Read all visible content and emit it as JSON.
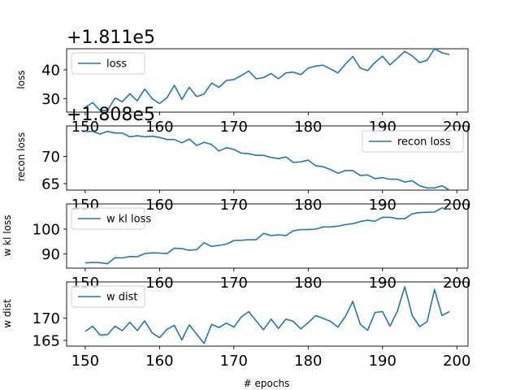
{
  "chart_data": [
    {
      "type": "line",
      "title": "",
      "xlabel": "",
      "ylabel": "loss",
      "offset_text": "+1.811e5",
      "legend": "top-left",
      "grid": false,
      "xlim": [
        147.5,
        201.5
      ],
      "ylim": [
        25.3,
        47.3
      ],
      "xticks": [
        150,
        160,
        170,
        180,
        190,
        200
      ],
      "yticks": [
        30,
        40
      ],
      "x": [
        150,
        151,
        152,
        153,
        154,
        155,
        156,
        157,
        158,
        159,
        160,
        161,
        162,
        163,
        164,
        165,
        166,
        167,
        168,
        169,
        170,
        171,
        172,
        173,
        174,
        175,
        176,
        177,
        178,
        179,
        180,
        181,
        182,
        183,
        184,
        185,
        186,
        187,
        188,
        189,
        190,
        191,
        192,
        193,
        194,
        195,
        196,
        197,
        198,
        199
      ],
      "series": [
        {
          "name": "loss",
          "color": "#1f77b4",
          "values": [
            27.0,
            28.6,
            25.9,
            25.9,
            30.2,
            28.9,
            31.7,
            29.2,
            33.3,
            30.0,
            28.3,
            30.3,
            34.6,
            29.7,
            33.9,
            30.7,
            31.6,
            35.4,
            33.9,
            36.3,
            36.6,
            38.0,
            39.6,
            36.9,
            37.3,
            38.7,
            36.9,
            38.9,
            39.2,
            38.3,
            40.6,
            41.3,
            41.6,
            40.3,
            38.9,
            42.0,
            44.6,
            40.6,
            39.7,
            42.6,
            44.7,
            41.7,
            44.0,
            46.4,
            44.8,
            42.5,
            43.3,
            47.3,
            45.9,
            45.3
          ]
        }
      ]
    },
    {
      "type": "line",
      "title": "",
      "xlabel": "",
      "ylabel": "recon loss",
      "offset_text": "+1.808e5",
      "legend": "top-right",
      "grid": false,
      "xlim": [
        147.5,
        201.5
      ],
      "ylim": [
        63.8,
        75.6
      ],
      "xticks": [
        150,
        160,
        170,
        180,
        190,
        200
      ],
      "yticks": [
        65,
        70
      ],
      "x": [
        150,
        151,
        152,
        153,
        154,
        155,
        156,
        157,
        158,
        159,
        160,
        161,
        162,
        163,
        164,
        165,
        166,
        167,
        168,
        169,
        170,
        171,
        172,
        173,
        174,
        175,
        176,
        177,
        178,
        179,
        180,
        181,
        182,
        183,
        184,
        185,
        186,
        187,
        188,
        189,
        190,
        191,
        192,
        193,
        194,
        195,
        196,
        197,
        198,
        199
      ],
      "series": [
        {
          "name": "recon loss",
          "color": "#1f77b4",
          "values": [
            74.6,
            74.6,
            74.1,
            74.6,
            74.3,
            74.3,
            73.6,
            73.8,
            73.6,
            73.7,
            73.5,
            73.1,
            73.1,
            72.5,
            73.2,
            72.0,
            72.6,
            72.2,
            71.0,
            71.6,
            71.3,
            70.6,
            70.5,
            70.2,
            70.2,
            69.8,
            69.6,
            69.9,
            68.9,
            69.0,
            69.3,
            68.3,
            68.1,
            67.6,
            66.9,
            67.4,
            67.4,
            66.5,
            66.6,
            65.9,
            66.1,
            65.8,
            65.8,
            65.3,
            65.5,
            64.6,
            64.2,
            64.2,
            64.6,
            63.8
          ]
        }
      ]
    },
    {
      "type": "line",
      "title": "",
      "xlabel": "",
      "ylabel": "w kl loss",
      "offset_text": "",
      "legend": "top-left",
      "grid": false,
      "xlim": [
        147.5,
        201.5
      ],
      "ylim": [
        84.2,
        110.2
      ],
      "xticks": [
        150,
        160,
        170,
        180,
        190,
        200
      ],
      "yticks": [
        90,
        100
      ],
      "x": [
        150,
        151,
        152,
        153,
        154,
        155,
        156,
        157,
        158,
        159,
        160,
        161,
        162,
        163,
        164,
        165,
        166,
        167,
        168,
        169,
        170,
        171,
        172,
        173,
        174,
        175,
        176,
        177,
        178,
        179,
        180,
        181,
        182,
        183,
        184,
        185,
        186,
        187,
        188,
        189,
        190,
        191,
        192,
        193,
        194,
        195,
        196,
        197,
        198,
        199
      ],
      "series": [
        {
          "name": "w kl loss",
          "color": "#1f77b4",
          "values": [
            86.3,
            86.5,
            86.4,
            86.0,
            88.4,
            88.3,
            88.9,
            88.8,
            90.1,
            90.4,
            90.3,
            90.1,
            92.3,
            92.1,
            91.4,
            91.7,
            94.5,
            93.0,
            93.4,
            93.9,
            95.4,
            95.5,
            95.7,
            95.7,
            98.3,
            97.4,
            97.7,
            97.4,
            99.3,
            99.8,
            99.8,
            100.0,
            100.9,
            100.9,
            101.2,
            101.8,
            102.2,
            103.1,
            103.6,
            103.2,
            104.8,
            104.8,
            104.2,
            104.2,
            106.2,
            106.7,
            106.8,
            106.9,
            108.6,
            108.0
          ]
        }
      ]
    },
    {
      "type": "line",
      "title": "",
      "xlabel": "# epochs",
      "ylabel": "w dist",
      "offset_text": "",
      "legend": "top-left",
      "grid": false,
      "xlim": [
        147.5,
        201.5
      ],
      "ylim": [
        163.7,
        178.2
      ],
      "xticks": [
        150,
        160,
        170,
        180,
        190,
        200
      ],
      "yticks": [
        165,
        170
      ],
      "x": [
        150,
        151,
        152,
        153,
        154,
        155,
        156,
        157,
        158,
        159,
        160,
        161,
        162,
        163,
        164,
        165,
        166,
        167,
        168,
        169,
        170,
        171,
        172,
        173,
        174,
        175,
        176,
        177,
        178,
        179,
        180,
        181,
        182,
        183,
        184,
        185,
        186,
        187,
        188,
        189,
        190,
        191,
        192,
        193,
        194,
        195,
        196,
        197,
        198,
        199
      ],
      "series": [
        {
          "name": "w dist",
          "color": "#1f77b4",
          "values": [
            167.0,
            168.2,
            166.2,
            166.3,
            168.2,
            167.2,
            169.1,
            167.2,
            169.4,
            166.7,
            165.6,
            167.5,
            168.4,
            165.1,
            168.5,
            166.4,
            164.3,
            168.6,
            167.9,
            168.9,
            168.0,
            170.3,
            171.5,
            169.4,
            167.4,
            169.8,
            167.7,
            169.8,
            169.3,
            167.6,
            169.0,
            170.6,
            170.0,
            169.3,
            168.0,
            170.4,
            173.8,
            168.6,
            167.3,
            171.3,
            171.5,
            168.2,
            171.6,
            177.1,
            170.6,
            168.1,
            169.2,
            176.5,
            170.6,
            171.5
          ]
        }
      ]
    }
  ]
}
